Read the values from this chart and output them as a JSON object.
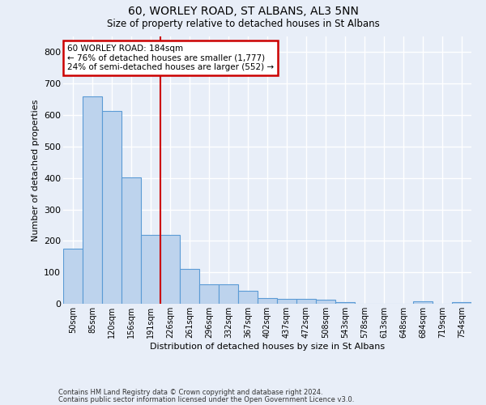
{
  "title1": "60, WORLEY ROAD, ST ALBANS, AL3 5NN",
  "title2": "Size of property relative to detached houses in St Albans",
  "xlabel": "Distribution of detached houses by size in St Albans",
  "ylabel": "Number of detached properties",
  "footnote1": "Contains HM Land Registry data © Crown copyright and database right 2024.",
  "footnote2": "Contains public sector information licensed under the Open Government Licence v3.0.",
  "bins": [
    "50sqm",
    "85sqm",
    "120sqm",
    "156sqm",
    "191sqm",
    "226sqm",
    "261sqm",
    "296sqm",
    "332sqm",
    "367sqm",
    "402sqm",
    "437sqm",
    "472sqm",
    "508sqm",
    "543sqm",
    "578sqm",
    "613sqm",
    "648sqm",
    "684sqm",
    "719sqm",
    "754sqm"
  ],
  "values": [
    175,
    660,
    612,
    402,
    218,
    218,
    110,
    63,
    63,
    42,
    17,
    16,
    15,
    13,
    6,
    0,
    0,
    0,
    8,
    0,
    6
  ],
  "bar_color": "#bdd3ed",
  "bar_edge_color": "#5b9bd5",
  "background_color": "#e8eef8",
  "grid_color": "#ffffff",
  "red_line_x": 4.5,
  "annotation_text": "60 WORLEY ROAD: 184sqm\n← 76% of detached houses are smaller (1,777)\n24% of semi-detached houses are larger (552) →",
  "annotation_box_color": "#ffffff",
  "annotation_box_edge": "#cc0000",
  "ylim": [
    0,
    850
  ],
  "yticks": [
    0,
    100,
    200,
    300,
    400,
    500,
    600,
    700,
    800
  ]
}
